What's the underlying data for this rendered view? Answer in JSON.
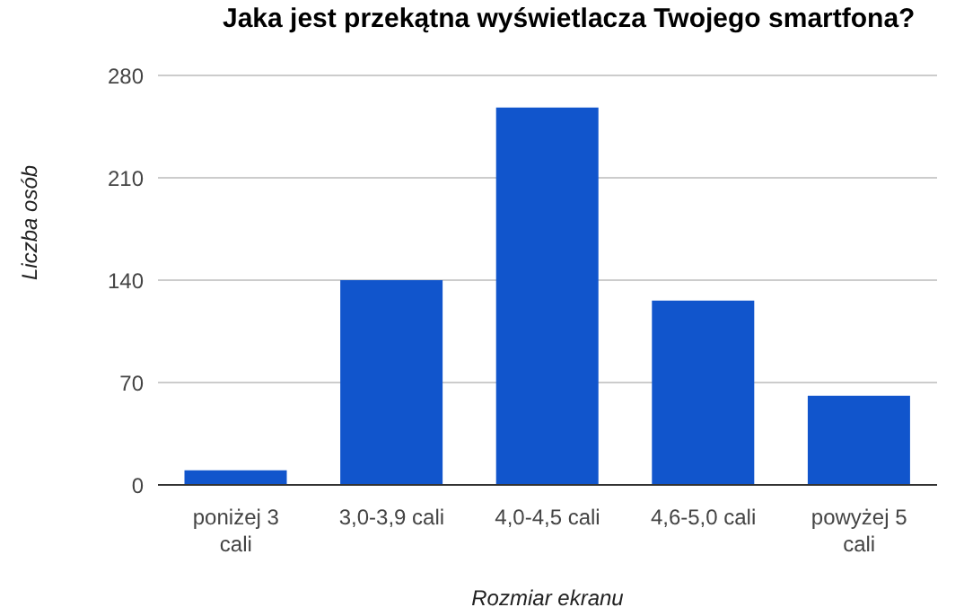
{
  "chart_data": {
    "type": "bar",
    "title": "Jaka jest przekątna wyświetlacza Twojego smartfona?",
    "xlabel": "Rozmiar ekranu",
    "ylabel": "Liczba osób",
    "categories": [
      "poniżej 3 cali",
      "3,0-3,9 cali",
      "4,0-4,5 cali",
      "4,6-5,0 cali",
      "powyżej 5 cali"
    ],
    "values": [
      10,
      140,
      258,
      126,
      61
    ],
    "color": "#1155cc",
    "ylim": [
      0,
      280
    ],
    "yticks": [
      0,
      70,
      140,
      210,
      280
    ],
    "grid": "y"
  }
}
